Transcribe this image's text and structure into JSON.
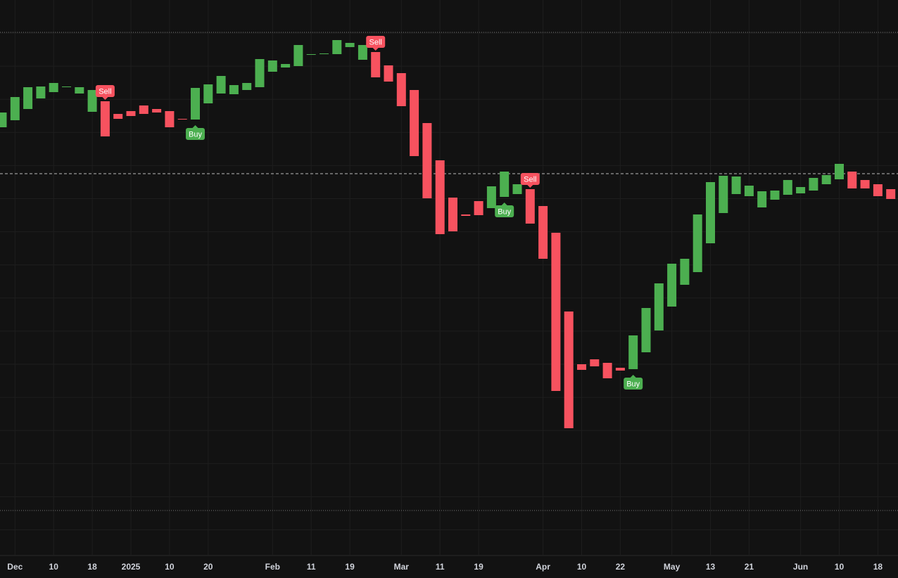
{
  "chart_data": {
    "type": "candlestick",
    "categories": [
      null,
      "Dec",
      null,
      null,
      "10",
      null,
      null,
      "18",
      null,
      null,
      "2025",
      null,
      null,
      "10",
      null,
      null,
      "20",
      null,
      null,
      null,
      null,
      "Feb",
      null,
      null,
      "11",
      null,
      null,
      "19",
      null,
      null,
      null,
      "Mar",
      null,
      null,
      "11",
      null,
      null,
      "19",
      null,
      null,
      null,
      null,
      "Apr",
      null,
      null,
      "10",
      null,
      null,
      "22",
      null,
      null,
      null,
      "May",
      null,
      null,
      "13",
      null,
      null,
      "21",
      null,
      null,
      null,
      "Jun",
      null,
      null,
      "10",
      null,
      null,
      "18",
      null
    ],
    "open": [
      609,
      619,
      635,
      650,
      659,
      666,
      657,
      631,
      646,
      628,
      632,
      640,
      635,
      632,
      621,
      620,
      643,
      657,
      656,
      662,
      666,
      688,
      694,
      696,
      712,
      713,
      713,
      723,
      705,
      716,
      697,
      686,
      662,
      615,
      562,
      509,
      485,
      504,
      494,
      510,
      514,
      521,
      497,
      459,
      347,
      272,
      279,
      274,
      267,
      265,
      289,
      320,
      354,
      385,
      403,
      444,
      487,
      514,
      511,
      495,
      506,
      513,
      515,
      519,
      528,
      535,
      546,
      534,
      528,
      521
    ],
    "close": [
      630,
      652,
      666,
      667,
      672,
      667,
      666,
      662,
      596,
      621,
      625,
      628,
      630,
      609,
      620,
      665,
      670,
      682,
      669,
      672,
      706,
      704,
      699,
      726,
      713,
      714,
      733,
      729,
      726,
      680,
      674,
      639,
      568,
      508,
      457,
      461,
      483,
      484,
      525,
      546,
      528,
      472,
      422,
      234,
      181,
      264,
      269,
      252,
      263,
      313,
      352,
      387,
      415,
      422,
      485,
      531,
      540,
      539,
      526,
      518,
      519,
      534,
      524,
      537,
      541,
      557,
      522,
      522,
      511,
      507
    ],
    "up_color": "#4caf50",
    "down_color": "#f7525f",
    "ylim": [
      0,
      790
    ],
    "reference_lines": [
      {
        "value": 744,
        "style": "dotted"
      },
      {
        "value": 543,
        "style": "dashed"
      },
      {
        "value": 64,
        "style": "dotted"
      }
    ],
    "signals": [
      {
        "index": 8,
        "label": "Sell"
      },
      {
        "index": 15,
        "label": "Buy"
      },
      {
        "index": 29,
        "label": "Sell"
      },
      {
        "index": 39,
        "label": "Buy"
      },
      {
        "index": 41,
        "label": "Sell"
      },
      {
        "index": 49,
        "label": "Buy"
      }
    ]
  }
}
